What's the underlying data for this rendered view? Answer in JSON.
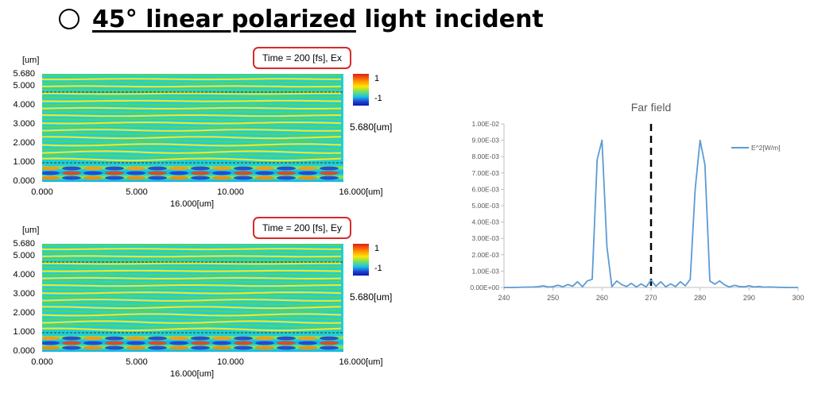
{
  "header": {
    "symbol": "○",
    "underlined": "45°  linear polarized",
    "rest": " light incident"
  },
  "panels": [
    {
      "id": "ex",
      "badge": "Time = 200 [fs], Ex",
      "unit": "[um]",
      "yticks": [
        "5.680",
        "5.000",
        "4.000",
        "3.000",
        "2.000",
        "1.000",
        "0.000"
      ],
      "xticks": [
        "0.000",
        "5.000",
        "10.000",
        "16.000[um]"
      ],
      "xunit": "16.000[um]",
      "cbar_max": "1",
      "cbar_min": "-1",
      "side_label": "5.680[um]"
    },
    {
      "id": "ey",
      "badge": "Time = 200 [fs], Ey",
      "unit": "[um]",
      "yticks": [
        "5.680",
        "5.000",
        "4.000",
        "3.000",
        "2.000",
        "1.000",
        "0.000"
      ],
      "xticks": [
        "0.000",
        "5.000",
        "10.000",
        "16.000[um]"
      ],
      "xunit": "16.000[um]",
      "cbar_max": "1",
      "cbar_min": "-1",
      "side_label": "5.680[um]"
    }
  ],
  "colors": {
    "badge_border": "#d92a2a",
    "series": "#5b9bd5",
    "dashed_line": "#000000"
  },
  "chart_data": {
    "type": "line",
    "title": "Far field",
    "xlim": [
      240,
      300
    ],
    "ylim": [
      0,
      0.01
    ],
    "xticks": [
      "240",
      "250",
      "260",
      "270",
      "280",
      "290",
      "300"
    ],
    "yticks": [
      "0.00E+00",
      "1.00E-03",
      "2.00E-03",
      "3.00E-03",
      "4.00E-03",
      "5.00E-03",
      "6.00E-03",
      "7.00E-03",
      "8.00E-03",
      "9.00E-03",
      "1.00E-02"
    ],
    "legend_position": "top-right",
    "reference_line_x": 270,
    "series": [
      {
        "name": "E^2[W/m]",
        "x": [
          240,
          242,
          244,
          246,
          247,
          248,
          249,
          250,
          251,
          252,
          253,
          254,
          255,
          256,
          257,
          258,
          259,
          260,
          261,
          262,
          263,
          264,
          265,
          266,
          267,
          268,
          269,
          270,
          271,
          272,
          273,
          274,
          275,
          276,
          277,
          278,
          279,
          280,
          281,
          282,
          283,
          284,
          285,
          286,
          287,
          288,
          289,
          290,
          291,
          292,
          293,
          294,
          296,
          298,
          300
        ],
        "y": [
          0,
          0,
          2e-05,
          3e-05,
          5e-05,
          0.0001,
          3e-05,
          5e-05,
          0.00014,
          4e-05,
          0.00018,
          8e-05,
          0.00035,
          5e-05,
          0.0004,
          0.0005,
          0.0078,
          0.009,
          0.0025,
          5e-05,
          0.0004,
          0.00018,
          6e-05,
          0.00025,
          3e-05,
          0.00022,
          3e-05,
          0.00045,
          8e-05,
          0.00035,
          4e-05,
          0.00022,
          6e-05,
          0.00035,
          0.0001,
          0.0005,
          0.006,
          0.009,
          0.0075,
          0.0004,
          0.0002,
          0.0004,
          0.00016,
          3e-05,
          0.00013,
          6e-05,
          4e-05,
          0.0001,
          3e-05,
          6e-05,
          2e-05,
          3e-05,
          1e-05,
          0,
          0
        ]
      }
    ]
  }
}
